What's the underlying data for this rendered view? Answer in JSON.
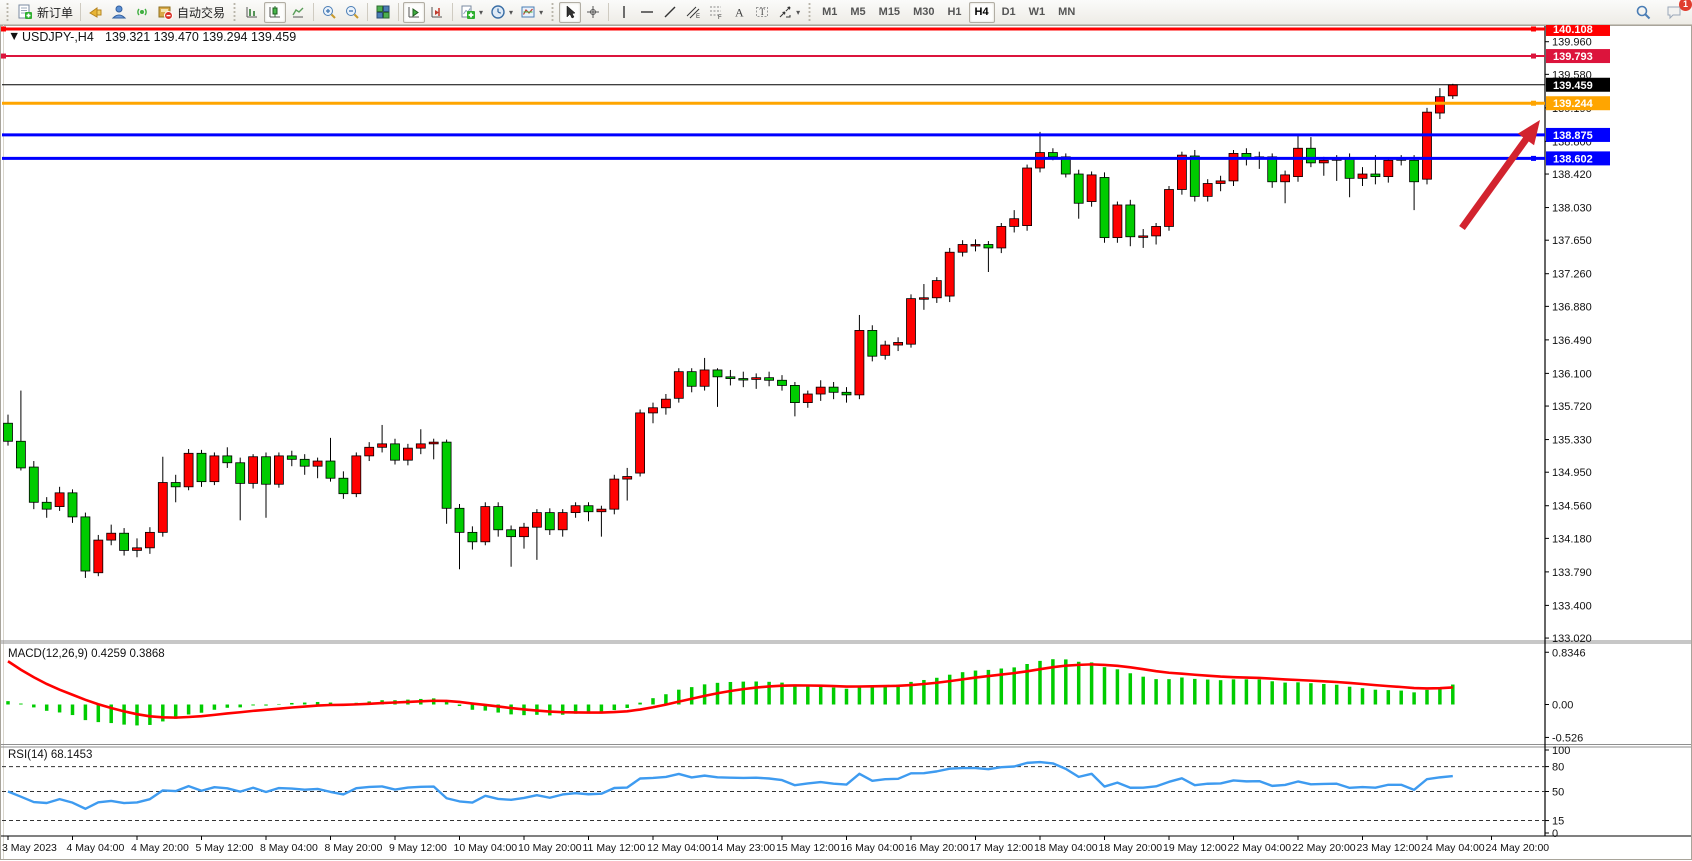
{
  "toolbar": {
    "new_order_label": "新订单",
    "auto_trading_label": "自动交易",
    "timeframes": [
      {
        "label": "M1",
        "active": false
      },
      {
        "label": "M5",
        "active": false
      },
      {
        "label": "M15",
        "active": false
      },
      {
        "label": "M30",
        "active": false
      },
      {
        "label": "H1",
        "active": false
      },
      {
        "label": "H4",
        "active": true
      },
      {
        "label": "D1",
        "active": false
      },
      {
        "label": "W1",
        "active": false
      },
      {
        "label": "MN",
        "active": false
      }
    ],
    "notification_count": "1"
  },
  "chart": {
    "symbol_title": "USDJPY-,H4",
    "ohlc_text": "139.321 139.470 139.294 139.459",
    "dropdown_glyph": "▼",
    "macd_label": "MACD(12,26,9) 0.4259 0.3868",
    "rsi_label": "RSI(14) 68.1453"
  },
  "chart_data": {
    "type": "candlestick",
    "symbol": "USDJPY-",
    "period": "H4",
    "open": "139.321",
    "high": "139.470",
    "low": "139.294",
    "close": "139.459",
    "price_axis_ticks": [
      "139.960",
      "139.580",
      "139.190",
      "138.800",
      "138.420",
      "138.030",
      "137.650",
      "137.260",
      "136.880",
      "136.490",
      "136.100",
      "135.720",
      "135.330",
      "134.950",
      "134.560",
      "134.180",
      "133.790",
      "133.400",
      "133.020"
    ],
    "time_labels": [
      "3 May 2023",
      "4 May 04:00",
      "4 May 20:00",
      "5 May 12:00",
      "8 May 04:00",
      "8 May 20:00",
      "9 May 12:00",
      "10 May 04:00",
      "10 May 20:00",
      "11 May 12:00",
      "12 May 04:00",
      "14 May 23:00",
      "15 May 12:00",
      "16 May 04:00",
      "16 May 20:00",
      "17 May 12:00",
      "18 May 04:00",
      "18 May 20:00",
      "19 May 12:00",
      "22 May 04:00",
      "22 May 20:00",
      "23 May 12:00",
      "24 May 04:00",
      "24 May 20:00"
    ],
    "levels": [
      {
        "price": 140.108,
        "label": "140.108",
        "color": "#ff0000",
        "width": 3,
        "left_handle": true
      },
      {
        "price": 139.793,
        "label": "139.793",
        "color": "#dc143c",
        "width": 2,
        "left_handle": true
      },
      {
        "price": 139.244,
        "label": "139.244",
        "color": "#ffa500",
        "width": 3,
        "left_handle": false
      },
      {
        "price": 138.875,
        "label": "138.875",
        "color": "#0000ff",
        "width": 3,
        "left_handle": false
      },
      {
        "price": 138.602,
        "label": "138.602",
        "color": "#0000ff",
        "width": 3,
        "left_handle": false
      }
    ],
    "current_price": {
      "price": 139.459,
      "label": "139.459",
      "color": "#000000"
    },
    "macd": {
      "params": [
        12,
        26,
        9
      ],
      "value_main": "0.4259",
      "value_signal": "0.3868",
      "axis_ticks": [
        {
          "v": 0.8346,
          "label": "0.8346"
        },
        {
          "v": 0.0,
          "label": "0.00"
        },
        {
          "v": -0.526,
          "label": "-0.526"
        }
      ]
    },
    "rsi": {
      "period": 14,
      "value": "68.1453",
      "axis_ticks": [
        {
          "v": 100,
          "label": "100"
        },
        {
          "v": 80,
          "label": "80"
        },
        {
          "v": 50,
          "label": "50"
        },
        {
          "v": 15,
          "label": "15"
        },
        {
          "v": 0,
          "label": "0"
        }
      ],
      "dashed_levels": [
        80,
        50,
        15
      ]
    },
    "annotation_arrow": {
      "from": [
        1462,
        228
      ],
      "to": [
        1540,
        120
      ]
    },
    "ohlc": [
      [
        135.52,
        135.62,
        135.26,
        135.31
      ],
      [
        135.31,
        135.9,
        134.97,
        135.0
      ],
      [
        135.01,
        135.08,
        134.52,
        134.6
      ],
      [
        134.6,
        134.66,
        134.42,
        134.52
      ],
      [
        134.55,
        134.78,
        134.5,
        134.71
      ],
      [
        134.71,
        134.75,
        134.36,
        134.43
      ],
      [
        134.43,
        134.48,
        133.72,
        133.8
      ],
      [
        133.78,
        134.22,
        133.74,
        134.16
      ],
      [
        134.16,
        134.34,
        134.1,
        134.24
      ],
      [
        134.24,
        134.3,
        133.98,
        134.04
      ],
      [
        134.04,
        134.18,
        133.96,
        134.07
      ],
      [
        134.07,
        134.31,
        134.0,
        134.25
      ],
      [
        134.25,
        135.13,
        134.2,
        134.83
      ],
      [
        134.83,
        134.92,
        134.6,
        134.78
      ],
      [
        134.78,
        135.22,
        134.74,
        135.17
      ],
      [
        135.17,
        135.21,
        134.78,
        134.84
      ],
      [
        134.84,
        135.18,
        134.8,
        135.14
      ],
      [
        135.14,
        135.24,
        135.0,
        135.06
      ],
      [
        135.06,
        135.12,
        134.39,
        134.82
      ],
      [
        134.82,
        135.16,
        134.76,
        135.13
      ],
      [
        135.13,
        135.18,
        134.42,
        134.81
      ],
      [
        134.81,
        135.18,
        134.77,
        135.14
      ],
      [
        135.14,
        135.2,
        135.02,
        135.1
      ],
      [
        135.1,
        135.16,
        134.92,
        135.02
      ],
      [
        135.02,
        135.12,
        134.88,
        135.08
      ],
      [
        135.08,
        135.35,
        134.84,
        134.88
      ],
      [
        134.88,
        134.96,
        134.64,
        134.7
      ],
      [
        134.7,
        135.18,
        134.66,
        135.14
      ],
      [
        135.14,
        135.3,
        135.08,
        135.24
      ],
      [
        135.24,
        135.5,
        135.18,
        135.28
      ],
      [
        135.28,
        135.34,
        135.04,
        135.09
      ],
      [
        135.09,
        135.28,
        135.03,
        135.23
      ],
      [
        135.23,
        135.45,
        135.16,
        135.28
      ],
      [
        135.28,
        135.34,
        135.1,
        135.3
      ],
      [
        135.3,
        135.33,
        134.35,
        134.53
      ],
      [
        134.53,
        134.58,
        133.82,
        134.25
      ],
      [
        134.25,
        134.32,
        134.05,
        134.14
      ],
      [
        134.14,
        134.6,
        134.1,
        134.55
      ],
      [
        134.55,
        134.6,
        134.2,
        134.28
      ],
      [
        134.28,
        134.33,
        133.85,
        134.2
      ],
      [
        134.2,
        134.36,
        134.06,
        134.31
      ],
      [
        134.31,
        134.52,
        133.93,
        134.48
      ],
      [
        134.48,
        134.53,
        134.22,
        134.28
      ],
      [
        134.28,
        134.52,
        134.2,
        134.48
      ],
      [
        134.48,
        134.6,
        134.42,
        134.56
      ],
      [
        134.56,
        134.6,
        134.38,
        134.49
      ],
      [
        134.49,
        134.56,
        134.2,
        134.52
      ],
      [
        134.52,
        134.92,
        134.46,
        134.87
      ],
      [
        134.87,
        135.0,
        134.62,
        134.9
      ],
      [
        134.94,
        135.68,
        134.9,
        135.64
      ],
      [
        135.64,
        135.76,
        135.52,
        135.7
      ],
      [
        135.7,
        135.86,
        135.62,
        135.8
      ],
      [
        135.81,
        136.16,
        135.76,
        136.12
      ],
      [
        136.12,
        136.16,
        135.88,
        135.95
      ],
      [
        135.95,
        136.28,
        135.9,
        136.14
      ],
      [
        136.14,
        136.16,
        135.71,
        136.06
      ],
      [
        136.06,
        136.14,
        135.96,
        136.04
      ],
      [
        136.04,
        136.12,
        135.94,
        136.03
      ],
      [
        136.03,
        136.1,
        135.92,
        136.05
      ],
      [
        136.05,
        136.12,
        135.95,
        136.02
      ],
      [
        136.02,
        136.08,
        135.9,
        135.96
      ],
      [
        135.96,
        136.0,
        135.6,
        135.76
      ],
      [
        135.76,
        135.9,
        135.7,
        135.86
      ],
      [
        135.86,
        136.02,
        135.78,
        135.94
      ],
      [
        135.94,
        136.0,
        135.8,
        135.88
      ],
      [
        135.88,
        135.94,
        135.76,
        135.85
      ],
      [
        135.85,
        136.78,
        135.8,
        136.6
      ],
      [
        136.6,
        136.66,
        136.24,
        136.3
      ],
      [
        136.31,
        136.48,
        136.26,
        136.43
      ],
      [
        136.43,
        136.52,
        136.36,
        136.46
      ],
      [
        136.44,
        137.02,
        136.4,
        136.97
      ],
      [
        136.97,
        137.14,
        136.84,
        136.98
      ],
      [
        136.98,
        137.22,
        136.92,
        137.18
      ],
      [
        137.0,
        137.56,
        136.93,
        137.51
      ],
      [
        137.51,
        137.65,
        137.46,
        137.6
      ],
      [
        137.6,
        137.66,
        137.52,
        137.6
      ],
      [
        137.6,
        137.64,
        137.28,
        137.56
      ],
      [
        137.56,
        137.85,
        137.5,
        137.81
      ],
      [
        137.81,
        138.0,
        137.74,
        137.9
      ],
      [
        137.82,
        138.53,
        137.76,
        138.49
      ],
      [
        138.49,
        138.91,
        138.44,
        138.67
      ],
      [
        138.67,
        138.72,
        138.58,
        138.62
      ],
      [
        138.62,
        138.66,
        138.38,
        138.42
      ],
      [
        138.42,
        138.47,
        137.9,
        138.08
      ],
      [
        138.1,
        138.45,
        138.04,
        138.41
      ],
      [
        138.38,
        138.44,
        137.62,
        137.68
      ],
      [
        137.68,
        138.1,
        137.62,
        138.06
      ],
      [
        138.06,
        138.12,
        137.58,
        137.69
      ],
      [
        137.69,
        137.78,
        137.56,
        137.7
      ],
      [
        137.7,
        137.85,
        137.6,
        137.81
      ],
      [
        137.81,
        138.28,
        137.76,
        138.24
      ],
      [
        138.24,
        138.68,
        138.18,
        138.64
      ],
      [
        138.63,
        138.7,
        138.1,
        138.16
      ],
      [
        138.16,
        138.36,
        138.1,
        138.31
      ],
      [
        138.31,
        138.4,
        138.22,
        138.34
      ],
      [
        138.34,
        138.7,
        138.28,
        138.66
      ],
      [
        138.66,
        138.72,
        138.52,
        138.6
      ],
      [
        138.6,
        138.68,
        138.48,
        138.62
      ],
      [
        138.62,
        138.66,
        138.26,
        138.33
      ],
      [
        138.33,
        138.46,
        138.08,
        138.41
      ],
      [
        138.39,
        138.89,
        138.33,
        138.72
      ],
      [
        138.72,
        138.85,
        138.5,
        138.55
      ],
      [
        138.55,
        138.62,
        138.4,
        138.58
      ],
      [
        138.58,
        138.64,
        138.34,
        138.6
      ],
      [
        138.6,
        138.66,
        138.15,
        138.37
      ],
      [
        138.37,
        138.5,
        138.28,
        138.42
      ],
      [
        138.42,
        138.64,
        138.3,
        138.39
      ],
      [
        138.39,
        138.6,
        138.32,
        138.58
      ],
      [
        138.6,
        138.64,
        138.52,
        138.58
      ],
      [
        138.58,
        138.64,
        138.0,
        138.33
      ],
      [
        138.36,
        139.19,
        138.3,
        139.14
      ],
      [
        139.13,
        139.42,
        139.06,
        139.32
      ],
      [
        139.33,
        139.47,
        139.294,
        139.459
      ]
    ],
    "colors": {
      "up": "#ff0000",
      "down": "#00cc00",
      "outline": "#000000",
      "macd_hist": "#00cc00",
      "macd_signal": "#ff0000",
      "rsi_line": "#3e9bf0",
      "arrow": "#d2232e"
    }
  }
}
